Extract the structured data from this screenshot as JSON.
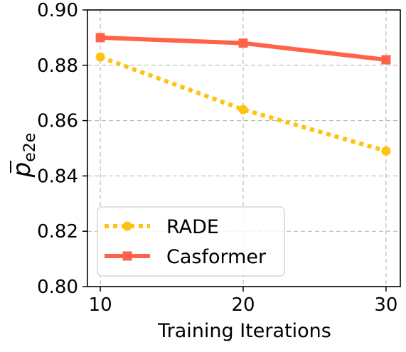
{
  "chart_data": {
    "type": "line",
    "x": [
      10,
      20,
      30
    ],
    "series": [
      {
        "name": "RADE",
        "values": [
          0.883,
          0.864,
          0.849
        ],
        "color": "#ffc20e",
        "line_style": "dotted",
        "marker": "circle"
      },
      {
        "name": "Casformer",
        "values": [
          0.89,
          0.888,
          0.882
        ],
        "color": "#ff6347",
        "line_style": "solid",
        "marker": "square"
      }
    ],
    "title": "",
    "xlabel": "Training Iterations",
    "ylabel": {
      "main": "p",
      "sub": "e2e"
    },
    "xlim": [
      9.1,
      31.0
    ],
    "ylim": [
      0.8,
      0.9
    ],
    "xticks": [
      10,
      20,
      30
    ],
    "xtick_labels": [
      "10",
      "20",
      "30"
    ],
    "yticks": [
      0.8,
      0.82,
      0.84,
      0.86,
      0.88,
      0.9
    ],
    "ytick_labels": [
      "0.80",
      "0.82",
      "0.84",
      "0.86",
      "0.88",
      "0.90"
    ],
    "grid": true,
    "legend": "lower-left"
  }
}
